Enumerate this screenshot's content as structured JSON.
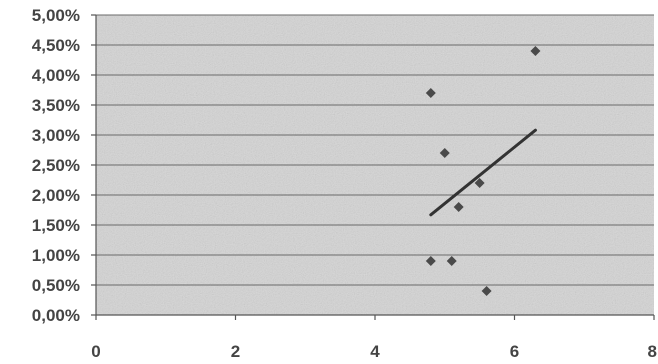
{
  "chart_data": {
    "type": "scatter",
    "title": "",
    "xlabel": "",
    "ylabel": "",
    "xlim": [
      0,
      8
    ],
    "ylim": [
      0,
      0.05
    ],
    "x_ticks": [
      0,
      2,
      4,
      6,
      8
    ],
    "x_tick_labels": [
      "0",
      "2",
      "4",
      "6",
      "8"
    ],
    "y_ticks": [
      0,
      0.005,
      0.01,
      0.015,
      0.02,
      0.025,
      0.03,
      0.035,
      0.04,
      0.045,
      0.05
    ],
    "y_tick_labels": [
      "0,00%",
      "0,50%",
      "1,00%",
      "1,50%",
      "2,00%",
      "2,50%",
      "3,00%",
      "3,50%",
      "4,00%",
      "4,50%",
      "5,00%"
    ],
    "grid": "horizontal",
    "legend": "none",
    "points": [
      {
        "x": 4.8,
        "y": 0.037
      },
      {
        "x": 4.8,
        "y": 0.009
      },
      {
        "x": 5.0,
        "y": 0.027
      },
      {
        "x": 5.1,
        "y": 0.009
      },
      {
        "x": 5.2,
        "y": 0.018
      },
      {
        "x": 5.5,
        "y": 0.022
      },
      {
        "x": 5.6,
        "y": 0.004
      },
      {
        "x": 6.3,
        "y": 0.044
      }
    ],
    "trendline": {
      "x": [
        4.8,
        6.3
      ],
      "y": [
        0.0167,
        0.0308
      ]
    },
    "colors": {
      "points": "#4a4a4a",
      "trendline": "#333333",
      "grid": "#6a6a6a",
      "plot_background": "#d9d9d9"
    }
  }
}
